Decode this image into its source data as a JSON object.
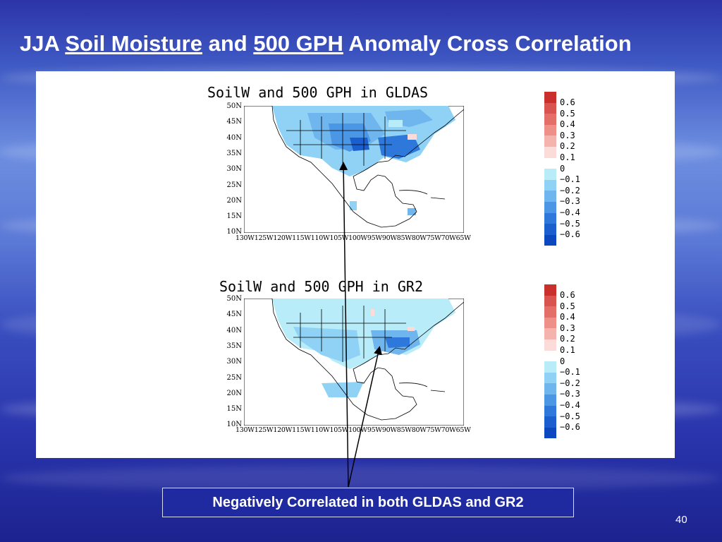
{
  "slide": {
    "title_prefix": "JJA ",
    "title_link1": "Soil Moisture",
    "title_mid": " and ",
    "title_link2": "500 GPH",
    "title_suffix": " Anomaly Cross Correlation",
    "callout": "Negatively Correlated in both GLDAS and GR2",
    "page_number": "40"
  },
  "maps": [
    {
      "title": "SoilW and 500 GPH in GLDAS"
    },
    {
      "title": "SoilW and 500 GPH in GR2"
    }
  ],
  "axes": {
    "lat_labels": [
      "50N",
      "45N",
      "40N",
      "35N",
      "30N",
      "25N",
      "20N",
      "15N",
      "10N"
    ],
    "lon_labels": "130W125W120W115W110W105W100W95W90W85W80W75W70W65W"
  },
  "colorbar": {
    "labels": [
      "0.6",
      "0.5",
      "0.4",
      "0.3",
      "0.2",
      "0.1",
      "0",
      "−0.1",
      "−0.2",
      "−0.3",
      "−0.4",
      "−0.5",
      "−0.6"
    ],
    "colors": [
      "#c9302c",
      "#d9544f",
      "#e36f68",
      "#ee8f88",
      "#f5b3ad",
      "#fbdcd8",
      "#ffffff",
      "#b7ecf8",
      "#8fd2f5",
      "#6fb5ee",
      "#4c96e6",
      "#2e78dc",
      "#1b5fcf",
      "#0d47c0"
    ]
  }
}
